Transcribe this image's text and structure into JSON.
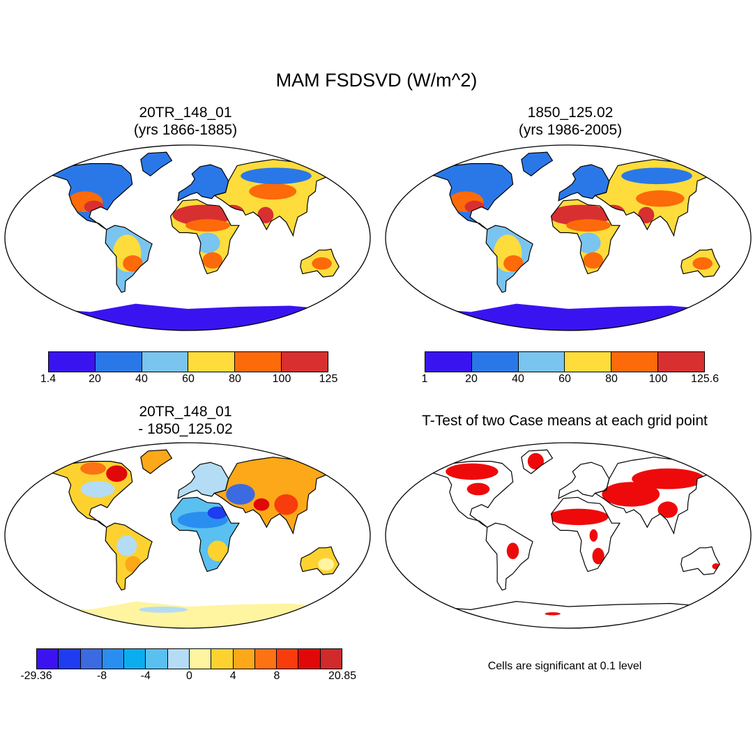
{
  "title": "MAM FSDSVD (W/m^2)",
  "colors": {
    "abs_levels": [
      "#3a14f0",
      "#2a78e8",
      "#7ac4f0",
      "#fddc3c",
      "#fc6a0a",
      "#d83030"
    ],
    "diff_levels": [
      "#3c12f0",
      "#1f3cf0",
      "#3c6ae0",
      "#2a8ef0",
      "#0aaef0",
      "#5ac0f0",
      "#b4dcf4",
      "#fff4a0",
      "#fdd230",
      "#fca818",
      "#fc7214",
      "#f83c0c",
      "#e00808",
      "#d02a2a"
    ],
    "sig": "#ee0a0a",
    "ocean": "#ffffff",
    "outline": "#000000"
  },
  "panels": {
    "top_left": {
      "title_line1": "20TR_148_01",
      "title_line2": "(yrs 1866-1885)",
      "colorbar_labels": [
        "1.4",
        "20",
        "40",
        "60",
        "80",
        "100",
        "125"
      ]
    },
    "top_right": {
      "title_line1": "1850_125.02",
      "title_line2": "(yrs 1986-2005)",
      "colorbar_labels": [
        "1",
        "20",
        "40",
        "60",
        "80",
        "100",
        "125.6"
      ]
    },
    "bottom_left": {
      "title_line1": "20TR_148_01",
      "title_line2": "- 1850_125.02",
      "colorbar_labels": [
        "-29.36",
        "-8",
        "-4",
        "0",
        "4",
        "8",
        "20.85"
      ]
    },
    "bottom_right": {
      "title": "T-Test of two Case means at each grid point",
      "note": "Cells are significant at 0.1 level"
    }
  }
}
